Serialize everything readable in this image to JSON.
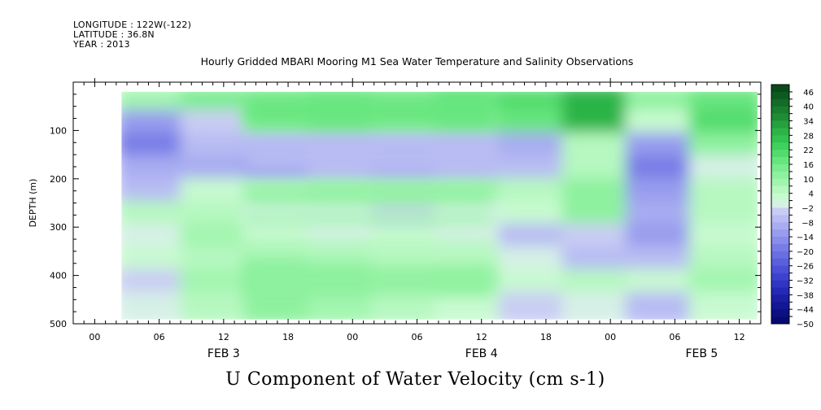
{
  "header": {
    "longitude": "LONGITUDE : 122W(-122)",
    "latitude": "LATITUDE : 36.8N",
    "year": "YEAR : 2013"
  },
  "chart_data": {
    "type": "heatmap",
    "title": "Hourly Gridded MBARI Mooring M1 Sea Water Temperature and Salinity Observations",
    "xlabel": "U Component of Water Velocity (cm s-1)",
    "ylabel": "DEPTH (m)",
    "x_range_hours": [
      -2,
      62
    ],
    "x_ticks": [
      "00",
      "06",
      "12",
      "18",
      "00",
      "06",
      "12",
      "18",
      "00",
      "06",
      "12"
    ],
    "x_tick_hours": [
      0,
      6,
      12,
      18,
      24,
      30,
      36,
      42,
      48,
      54,
      60
    ],
    "date_labels": [
      {
        "text": "FEB  3",
        "hour": 12
      },
      {
        "text": "FEB  4",
        "hour": 36
      },
      {
        "text": "FEB  5",
        "hour": 56.5
      }
    ],
    "y_range": [
      500,
      0
    ],
    "y_ticks": [
      100,
      200,
      300,
      400,
      500
    ],
    "colorbar": {
      "labels": [
        "46",
        "40",
        "34",
        "28",
        "22",
        "16",
        "10",
        "4",
        "-2",
        "-8",
        "-14",
        "-20",
        "-26",
        "-32",
        "-38",
        "-44",
        "-50"
      ],
      "levels": [
        49,
        46,
        43,
        40,
        37,
        34,
        31,
        28,
        25,
        22,
        19,
        16,
        13,
        10,
        7,
        4,
        1,
        -2,
        -5,
        -8,
        -11,
        -14,
        -17,
        -20,
        -23,
        -26,
        -29,
        -32,
        -35,
        -38,
        -41,
        -44,
        -47,
        -50
      ],
      "colors_top_to_bottom": [
        "#0a4a1a",
        "#0d5a20",
        "#136b27",
        "#197c2e",
        "#1f8c36",
        "#27a040",
        "#2cb447",
        "#32c24f",
        "#3fd05d",
        "#52dc6d",
        "#66e57e",
        "#7aec8f",
        "#8ef19f",
        "#a2f5af",
        "#b6f8c0",
        "#c8fad0",
        "#d6f0e6",
        "#c9cdf3",
        "#b8bcf3",
        "#a8acf1",
        "#989cee",
        "#888cea",
        "#787de6",
        "#696ee1",
        "#5a5fdc",
        "#4b50d6",
        "#3d42ce",
        "#3035c3",
        "#2429b6",
        "#1a1fa6",
        "#121795",
        "#0c1082",
        "#070a70"
      ]
    },
    "sample_field": {
      "note_depths_m": [
        25,
        75,
        125,
        175,
        225,
        275,
        325,
        375,
        425,
        475
      ],
      "hours": [
        3,
        9,
        15,
        21,
        27,
        33,
        39,
        45,
        51,
        57
      ],
      "values": [
        [
          8,
          14,
          12,
          14,
          12,
          16,
          20,
          28,
          12,
          16
        ],
        [
          -12,
          -4,
          12,
          14,
          10,
          14,
          18,
          30,
          2,
          20
        ],
        [
          -20,
          -8,
          -6,
          -8,
          -8,
          -8,
          -10,
          4,
          -14,
          10
        ],
        [
          -10,
          -10,
          -12,
          -6,
          -10,
          -6,
          -8,
          6,
          -18,
          -2
        ],
        [
          -8,
          2,
          6,
          8,
          8,
          8,
          6,
          10,
          -14,
          4
        ],
        [
          4,
          6,
          -2,
          0,
          -4,
          0,
          2,
          10,
          -10,
          6
        ],
        [
          -2,
          8,
          2,
          0,
          2,
          -2,
          -6,
          -4,
          -12,
          2
        ],
        [
          2,
          6,
          10,
          8,
          6,
          4,
          -2,
          -8,
          -6,
          6
        ],
        [
          -4,
          8,
          12,
          10,
          6,
          8,
          2,
          4,
          2,
          8
        ],
        [
          -2,
          4,
          10,
          8,
          6,
          2,
          -4,
          -2,
          -8,
          2
        ]
      ]
    }
  }
}
